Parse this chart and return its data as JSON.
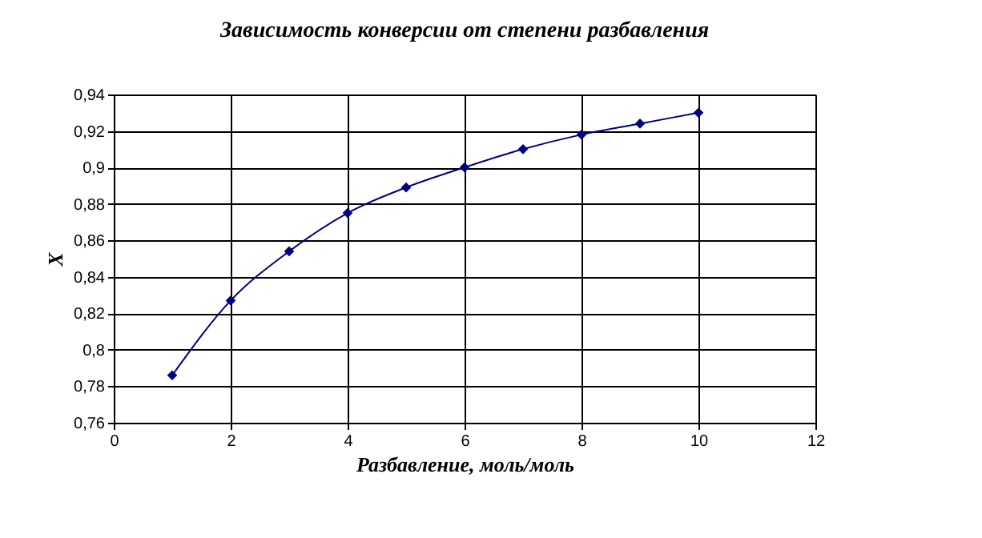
{
  "chart_data": {
    "type": "line",
    "title": "Зависимость конверсии от степени разбавления",
    "xlabel": "Разбавление, моль/моль",
    "ylabel": "X",
    "x": [
      1,
      2,
      3,
      4,
      5,
      6,
      7,
      8,
      9,
      10
    ],
    "series": [
      {
        "color": "#000080",
        "values": [
          0.786,
          0.827,
          0.854,
          0.875,
          0.889,
          0.9,
          0.91,
          0.918,
          0.924,
          0.93
        ]
      }
    ],
    "xlim": [
      0,
      12
    ],
    "xticks": [
      0,
      2,
      4,
      6,
      8,
      10,
      12
    ],
    "ylim": [
      0.76,
      0.94
    ],
    "yticks": [
      {
        "value": 0.76,
        "label": "0,76"
      },
      {
        "value": 0.78,
        "label": "0,78"
      },
      {
        "value": 0.8,
        "label": "0,8"
      },
      {
        "value": 0.82,
        "label": "0,82"
      },
      {
        "value": 0.84,
        "label": "0,84"
      },
      {
        "value": 0.86,
        "label": "0,86"
      },
      {
        "value": 0.88,
        "label": "0,88"
      },
      {
        "value": 0.9,
        "label": "0,9"
      },
      {
        "value": 0.92,
        "label": "0,92"
      },
      {
        "value": 0.94,
        "label": "0,94"
      }
    ],
    "grid": true,
    "marker": "diamond",
    "line_style": "solid"
  }
}
